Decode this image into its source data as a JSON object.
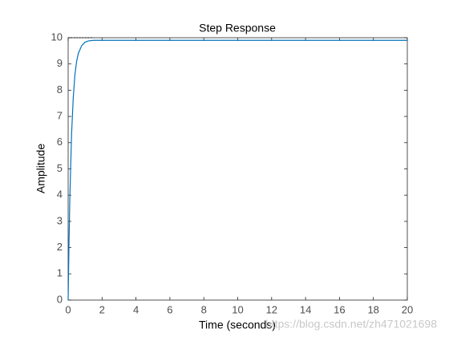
{
  "chart_data": {
    "type": "line",
    "title": "Step Response",
    "xlabel": "Time (seconds)",
    "ylabel": "Amplitude",
    "watermark": "https://blog.csdn.net/zh471021698",
    "xlim": [
      0,
      20
    ],
    "xticks": [
      0,
      2,
      4,
      6,
      8,
      10,
      12,
      14,
      16,
      18,
      20
    ],
    "ylim": [
      0,
      10
    ],
    "yticks": [
      0,
      1,
      2,
      3,
      4,
      5,
      6,
      7,
      8,
      9,
      10
    ],
    "grid": false,
    "series": [
      {
        "color": "#0072bd",
        "style": "solid",
        "x": [
          0,
          0.05,
          0.1,
          0.2,
          0.3,
          0.4,
          0.5,
          0.6,
          0.8,
          1.0,
          1.2,
          1.5,
          20
        ],
        "values": [
          0,
          2.2,
          3.9,
          6.3,
          7.7,
          8.6,
          9.1,
          9.4,
          9.7,
          9.83,
          9.88,
          9.9,
          9.9
        ]
      },
      {
        "color": "#000000",
        "style": "dotted",
        "x": [
          0,
          1.5
        ],
        "values": [
          10,
          10
        ]
      }
    ]
  }
}
